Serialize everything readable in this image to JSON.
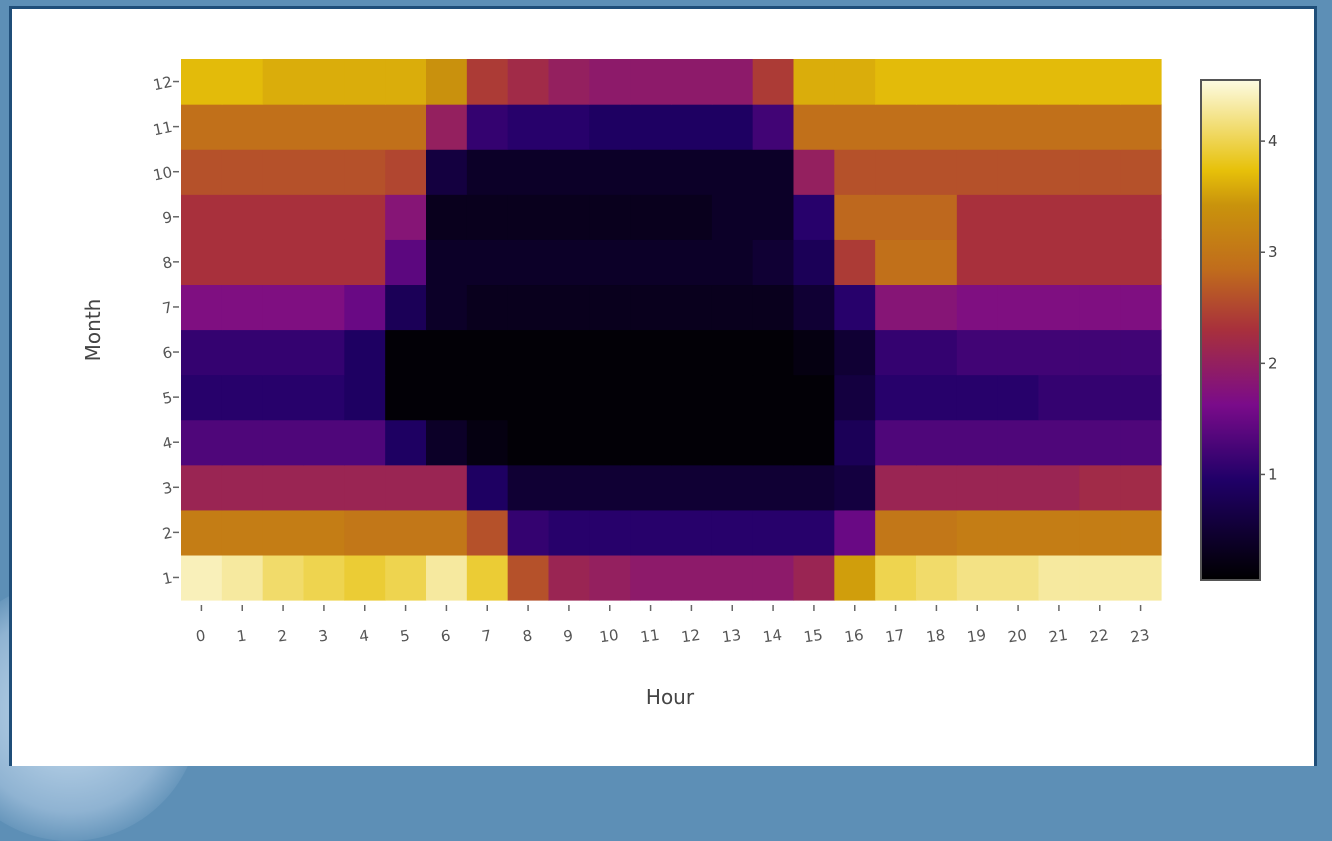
{
  "chart_data": {
    "type": "heatmap",
    "xlabel": "Hour",
    "ylabel": "Month",
    "x": [
      "0",
      "1",
      "2",
      "3",
      "4",
      "5",
      "6",
      "7",
      "8",
      "9",
      "10",
      "11",
      "12",
      "13",
      "14",
      "15",
      "16",
      "17",
      "18",
      "19",
      "20",
      "21",
      "22",
      "23"
    ],
    "y": [
      "1",
      "2",
      "3",
      "4",
      "5",
      "6",
      "7",
      "8",
      "9",
      "10",
      "11",
      "12"
    ],
    "z": [
      [
        4.4,
        4.3,
        4.1,
        4.0,
        3.9,
        4.0,
        4.3,
        3.9,
        2.6,
        2.1,
        2.0,
        1.9,
        1.9,
        1.9,
        1.9,
        2.1,
        3.5,
        4.0,
        4.1,
        4.2,
        4.2,
        4.3,
        4.3,
        4.3
      ],
      [
        3.1,
        3.1,
        3.1,
        3.1,
        3.0,
        3.0,
        3.0,
        2.6,
        1.1,
        1.0,
        1.0,
        1.0,
        1.0,
        1.0,
        1.0,
        1.0,
        1.5,
        3.0,
        3.0,
        3.1,
        3.1,
        3.1,
        3.1,
        3.1
      ],
      [
        2.1,
        2.1,
        2.1,
        2.1,
        2.1,
        2.1,
        2.1,
        0.9,
        0.5,
        0.5,
        0.5,
        0.5,
        0.5,
        0.5,
        0.5,
        0.5,
        0.6,
        2.1,
        2.1,
        2.1,
        2.1,
        2.1,
        2.2,
        2.2
      ],
      [
        1.3,
        1.3,
        1.3,
        1.3,
        1.3,
        0.9,
        0.4,
        0.2,
        0.1,
        0.1,
        0.1,
        0.1,
        0.1,
        0.1,
        0.1,
        0.1,
        0.8,
        1.3,
        1.3,
        1.3,
        1.3,
        1.3,
        1.3,
        1.3
      ],
      [
        1.0,
        1.0,
        1.0,
        1.0,
        0.9,
        0.1,
        0.1,
        0.1,
        0.1,
        0.1,
        0.1,
        0.1,
        0.1,
        0.1,
        0.1,
        0.1,
        0.6,
        1.0,
        1.0,
        1.0,
        1.0,
        1.1,
        1.1,
        1.1
      ],
      [
        1.1,
        1.1,
        1.1,
        1.1,
        0.9,
        0.1,
        0.1,
        0.1,
        0.1,
        0.1,
        0.1,
        0.1,
        0.1,
        0.1,
        0.1,
        0.2,
        0.5,
        1.1,
        1.1,
        1.2,
        1.2,
        1.2,
        1.2,
        1.2
      ],
      [
        1.7,
        1.7,
        1.7,
        1.7,
        1.5,
        0.8,
        0.4,
        0.3,
        0.3,
        0.3,
        0.3,
        0.3,
        0.3,
        0.3,
        0.3,
        0.5,
        1.0,
        1.8,
        1.8,
        1.7,
        1.7,
        1.7,
        1.7,
        1.7
      ],
      [
        2.3,
        2.3,
        2.3,
        2.3,
        2.3,
        1.4,
        0.4,
        0.4,
        0.4,
        0.4,
        0.4,
        0.4,
        0.4,
        0.4,
        0.5,
        0.8,
        2.4,
        2.9,
        2.9,
        2.3,
        2.3,
        2.3,
        2.3,
        2.3
      ],
      [
        2.3,
        2.3,
        2.3,
        2.3,
        2.3,
        1.8,
        0.3,
        0.3,
        0.3,
        0.3,
        0.3,
        0.3,
        0.3,
        0.4,
        0.4,
        1.0,
        2.8,
        2.8,
        2.8,
        2.3,
        2.3,
        2.3,
        2.3,
        2.3
      ],
      [
        2.6,
        2.6,
        2.6,
        2.6,
        2.6,
        2.5,
        0.6,
        0.4,
        0.4,
        0.4,
        0.4,
        0.4,
        0.4,
        0.4,
        0.4,
        2.0,
        2.6,
        2.6,
        2.6,
        2.6,
        2.6,
        2.6,
        2.6,
        2.6
      ],
      [
        2.9,
        2.9,
        2.9,
        2.9,
        2.9,
        2.9,
        2.0,
        1.1,
        1.0,
        1.0,
        0.9,
        0.9,
        0.9,
        0.9,
        1.2,
        2.9,
        2.9,
        2.9,
        2.9,
        2.9,
        2.9,
        2.9,
        2.9,
        2.9
      ],
      [
        3.7,
        3.7,
        3.6,
        3.6,
        3.6,
        3.6,
        3.4,
        2.4,
        2.2,
        2.0,
        1.9,
        1.9,
        1.9,
        1.9,
        2.4,
        3.6,
        3.6,
        3.7,
        3.7,
        3.7,
        3.7,
        3.7,
        3.7,
        3.7
      ]
    ],
    "zrange": [
      0.05,
      4.55
    ],
    "colorbar_ticks": [
      "1",
      "2",
      "3",
      "4"
    ],
    "colorscale": [
      [
        0.0,
        "#000000"
      ],
      [
        0.2,
        "#200068"
      ],
      [
        0.35,
        "#7a0b8a"
      ],
      [
        0.5,
        "#a8303c"
      ],
      [
        0.62,
        "#c06c1c"
      ],
      [
        0.75,
        "#c9930c"
      ],
      [
        0.82,
        "#e7c10a"
      ],
      [
        1.0,
        "#fdfbe2"
      ]
    ]
  }
}
